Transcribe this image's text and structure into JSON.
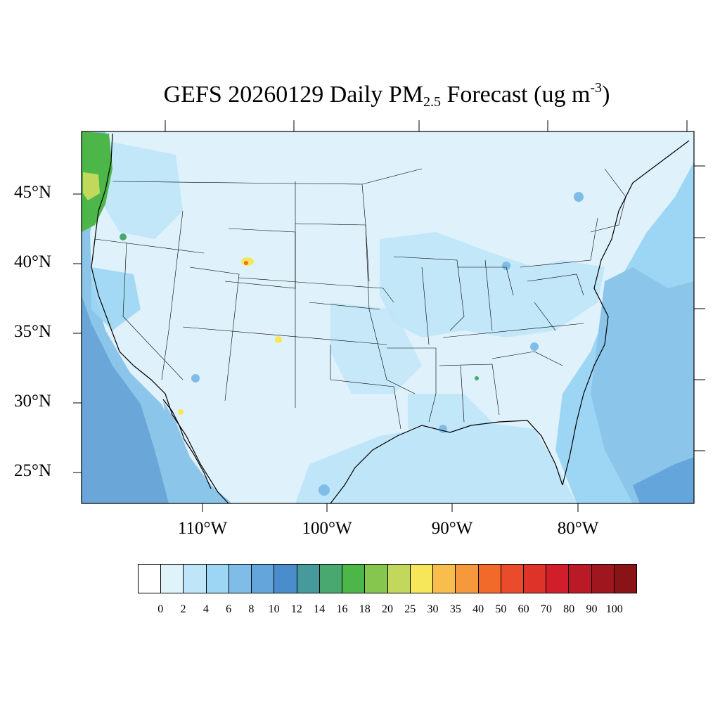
{
  "title": {
    "main": "GEFS 20260129 Daily PM",
    "sub": "2.5",
    "middle": " Forecast (ug m",
    "sup": "-3",
    "end": ")"
  },
  "lat_labels": [
    "45°N",
    "40°N",
    "35°N",
    "30°N",
    "25°N"
  ],
  "lon_labels": [
    "110°W",
    "100°W",
    "90°W",
    "80°W"
  ],
  "colorbar": {
    "labels": [
      "0",
      "2",
      "4",
      "6",
      "8",
      "10",
      "12",
      "14",
      "16",
      "18",
      "20",
      "25",
      "30",
      "35",
      "40",
      "50",
      "60",
      "70",
      "80",
      "90",
      "100"
    ],
    "colors": [
      "#ffffff",
      "#e0f3fb",
      "#bfe6f8",
      "#9dd6f4",
      "#7fbde8",
      "#64a6db",
      "#4a8ccc",
      "#479a9c",
      "#48a870",
      "#4cb648",
      "#86c54e",
      "#c1d85c",
      "#f6e65a",
      "#f8bd4c",
      "#f6983c",
      "#f26a2a",
      "#ea4b2a",
      "#dd3328",
      "#d01f2a",
      "#ba1a25",
      "#a0161f",
      "#8a1318"
    ]
  },
  "regions": {
    "background": "#dff1fa",
    "ocean_pacific": "#6aa7d8",
    "ocean_atlantic": "#8cc5ea",
    "smoke_oregon": "#4cb648",
    "smoke_core": "#c1d85c",
    "hotspot_wy": "#f26a2a",
    "hotspot_nm": "#f6e65a",
    "hotspot_az": "#f6e65a",
    "hotspot_al": "#48a870"
  }
}
